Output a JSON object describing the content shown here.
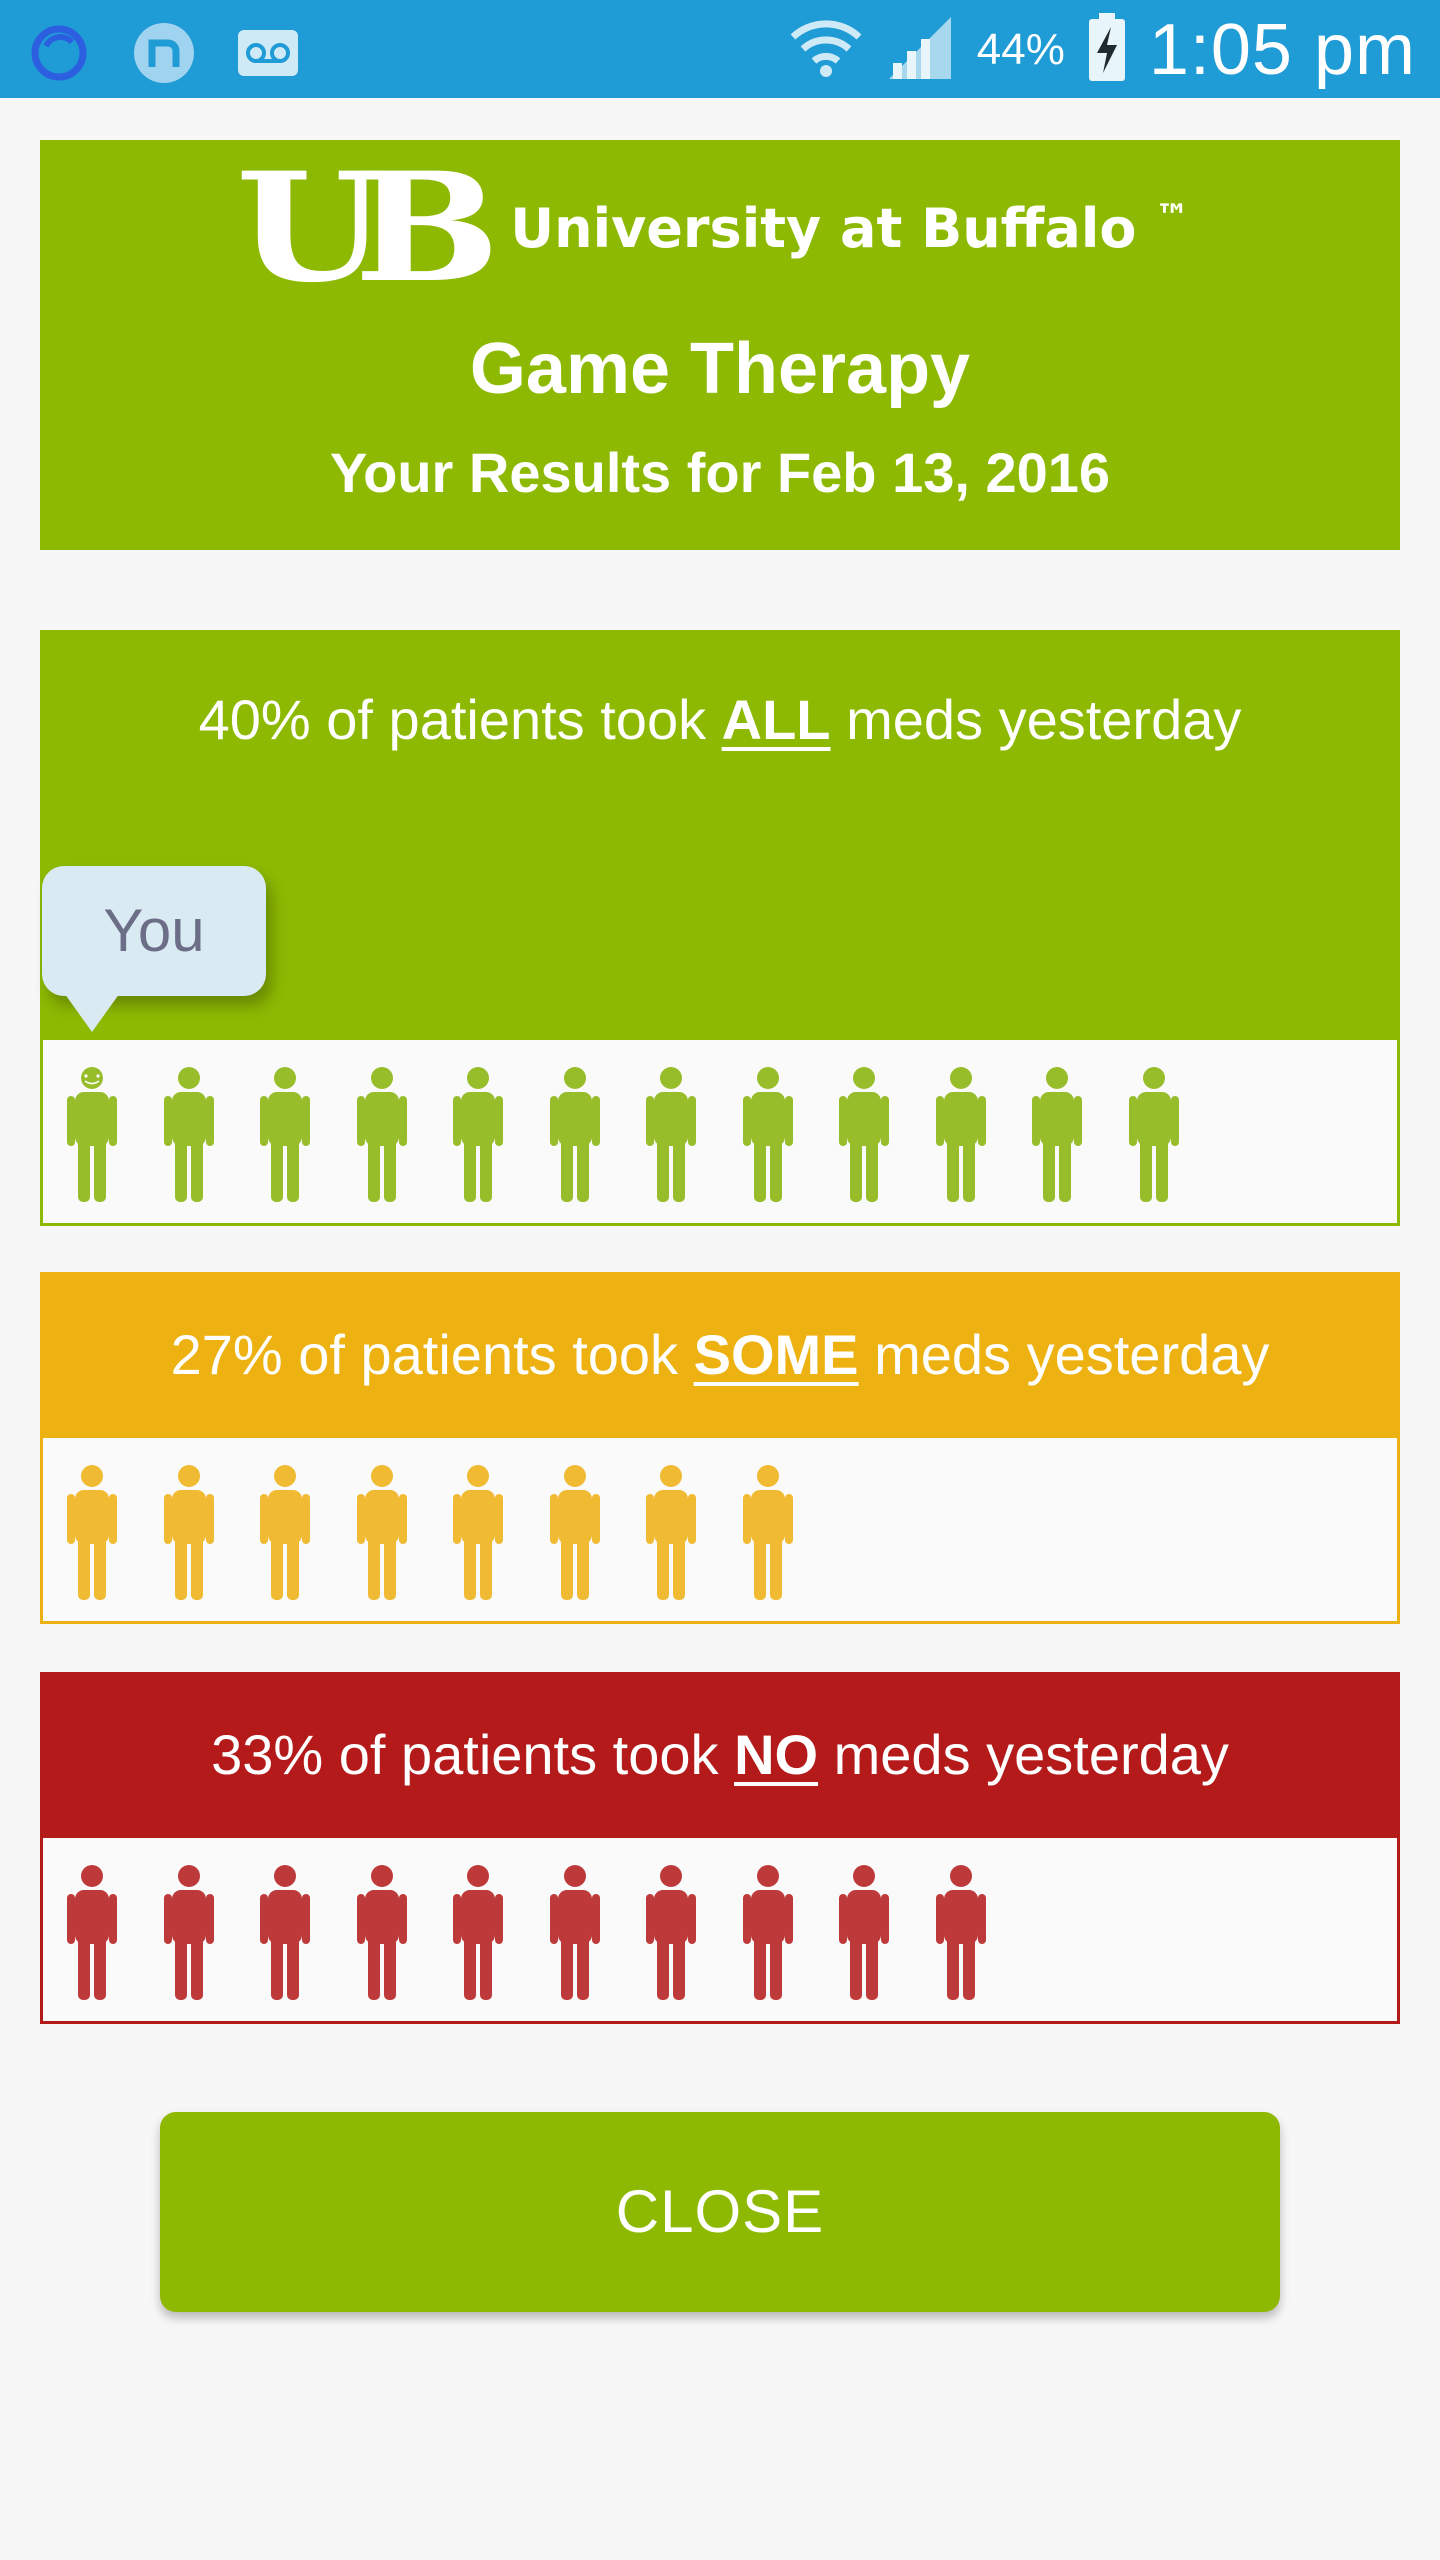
{
  "status_bar": {
    "battery_percent": "44%",
    "time": "1:05 pm",
    "icons": [
      "sync-icon",
      "notification-n-icon",
      "voicemail-icon",
      "wifi-icon",
      "signal-icon",
      "battery-charging-icon"
    ]
  },
  "header": {
    "logo_text": "University at Buffalo",
    "trademark": "™",
    "title": "Game Therapy",
    "date_line": "Your Results for Feb 13, 2016"
  },
  "stats": {
    "all": {
      "prefix": "40% of patients took ",
      "keyword": "ALL",
      "suffix": " meds yesterday",
      "count": 12,
      "color": "#8db903"
    },
    "some": {
      "prefix": "27% of patients took ",
      "keyword": "SOME",
      "suffix": " meds yesterday",
      "count": 8,
      "color": "#edb212"
    },
    "none": {
      "prefix": "33% of patients took ",
      "keyword": "NO",
      "suffix": " meds yesterday",
      "count": 10,
      "color": "#b51a1b"
    }
  },
  "you_label": "You",
  "close_label": "CLOSE",
  "colors": {
    "status_bar": "#1f9bd6",
    "green": "#8db903",
    "yellow": "#edb212",
    "red": "#b51a1b",
    "person_green": "#97bd2a",
    "person_yellow": "#f0bb33",
    "person_red": "#be3a3a"
  }
}
